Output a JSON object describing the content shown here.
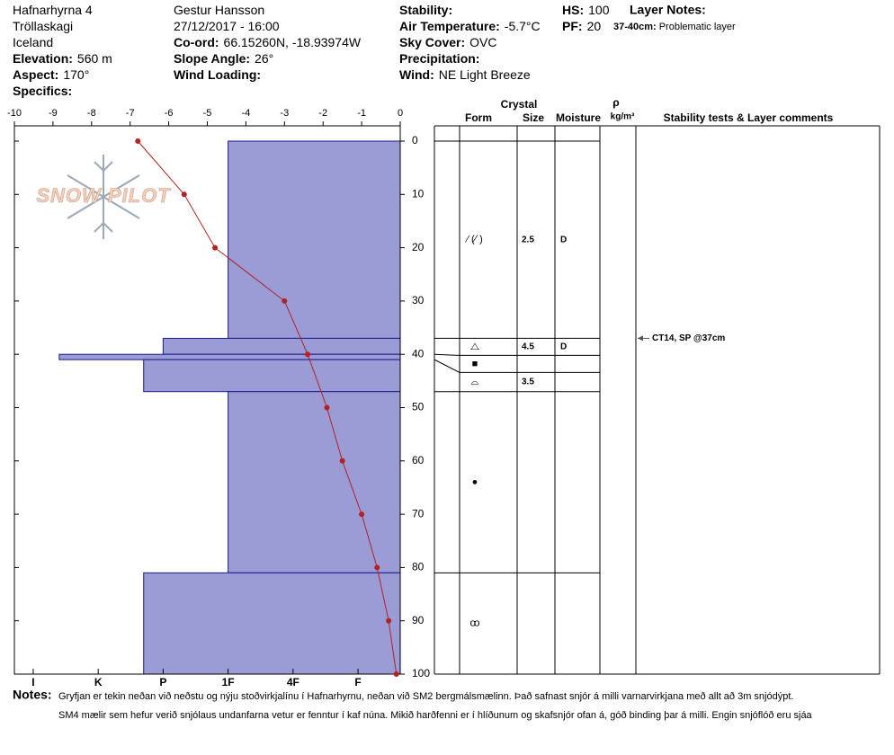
{
  "header": {
    "columns": [
      [
        {
          "text": "Hafnarhyrna 4"
        },
        {
          "text": "Tröllaskagi"
        },
        {
          "text": "Iceland"
        },
        {
          "label": "Elevation:",
          "value": "560 m"
        },
        {
          "label": "Aspect:",
          "value": "170°"
        },
        {
          "label": "Specifics:"
        }
      ],
      [
        {
          "text": "Gestur Hansson"
        },
        {
          "text": "27/12/2017 - 16:00"
        },
        {
          "label": "Co-ord:",
          "value": "66.15260N, -18.93974W"
        },
        {
          "label": "Slope Angle:",
          "value": "26°"
        },
        {
          "label": "Wind Loading:"
        }
      ],
      [
        {
          "label": "Stability:"
        },
        {
          "label": "Air Temperature:",
          "value": "-5.7°C"
        },
        {
          "label": "Sky Cover:",
          "value": "OVC"
        },
        {
          "label": "Precipitation:"
        },
        {
          "label": "Wind:",
          "value": "NE Light Breeze"
        }
      ],
      [
        {
          "label": "HS:",
          "value": "100"
        },
        {
          "label": "PF:",
          "value": "20"
        }
      ]
    ],
    "layer_notes": {
      "title": "Layer Notes:",
      "items": [
        {
          "label": "37-40cm:",
          "value": "Problematic layer"
        }
      ]
    }
  },
  "chart_data": {
    "type": "snow-profile",
    "watermark": "SNOW PILOT",
    "ylim": [
      0,
      100
    ],
    "yticks": [
      0,
      10,
      20,
      30,
      40,
      50,
      60,
      70,
      80,
      90,
      100
    ],
    "temperature": {
      "xlim": [
        -10,
        0
      ],
      "xticks": [
        -10,
        -9,
        -8,
        -7,
        -6,
        -5,
        -4,
        -3,
        -2,
        -1,
        0
      ],
      "color": "#b22222",
      "depths": [
        0,
        10,
        20,
        30,
        40,
        50,
        60,
        70,
        80,
        90,
        100
      ],
      "values": [
        -6.8,
        -5.6,
        -4.8,
        -3.0,
        -2.4,
        -1.9,
        -1.5,
        -1.0,
        -0.6,
        -0.3,
        -0.1
      ]
    },
    "hardness": {
      "xlim": [
        6.29,
        0.35
      ],
      "color": "#9b9bd6",
      "xticks": [
        {
          "value": 6,
          "label": "I"
        },
        {
          "value": 5,
          "label": "K"
        },
        {
          "value": 4,
          "label": "P"
        },
        {
          "value": 3,
          "label": "1F"
        },
        {
          "value": 2,
          "label": "4F"
        },
        {
          "value": 1,
          "label": "F"
        }
      ]
    },
    "columns": {
      "crystal": "Crystal",
      "form": "Form",
      "size": "Size",
      "moisture": "Moisture",
      "density": "ρ",
      "density_unit": "kg/m³",
      "comments": "Stability tests & Layer comments"
    },
    "layers": [
      {
        "top": 0,
        "bottom": 37,
        "hardness": 3,
        "form": "⁄ (⁄˙)",
        "size": 2.5,
        "moisture": "D"
      },
      {
        "top": 37,
        "bottom": 40,
        "hardness": 4,
        "form": "⧍",
        "size": 4.5,
        "moisture": "D"
      },
      {
        "top": 40,
        "bottom": 41,
        "hardness": 5.6,
        "form": "■"
      },
      {
        "top": 41,
        "bottom": 47,
        "hardness": 4.3,
        "form": "⌓",
        "size": 3.5
      },
      {
        "top": 47,
        "bottom": 81,
        "hardness": 3,
        "form": "●"
      },
      {
        "top": 81,
        "bottom": 100,
        "hardness": 4.3,
        "form": "ꝏ"
      }
    ],
    "tests": [
      {
        "depth": 37,
        "label": "CT14, SP @37cm"
      }
    ]
  },
  "notes": {
    "label": "Notes:",
    "lines": [
      "Gryfjan er tekin neðan við neðstu og nýju stoðvirkjalínu í Hafnarhyrnu, neðan við SM2 bergmálsmælinn. Það safnast snjór á milli varnarvirkjana með allt að 3m snjódýpt.",
      "SM4 mælir sem hefur verið snjólaus undanfarna vetur er fenntur í kaf núna. Mikið harðfenni er í hlíðunum og skafsnjór ofan á, góð binding þar á milli. Engin snjóflóð eru sjáa"
    ]
  }
}
